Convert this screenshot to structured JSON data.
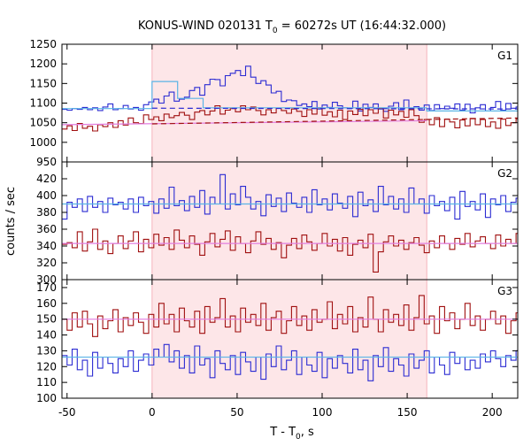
{
  "title": {
    "prefix": "KONUS-WIND 020131 T",
    "sub": "0",
    "suffix": " = 60272s UT (16:44:32.000)"
  },
  "xlabel": {
    "main": "T - T",
    "sub": "0",
    "suffix": ", s"
  },
  "ylabel": "counts / sec",
  "colors": {
    "blue": "#2b2bd2",
    "red": "#a01010",
    "cyan": "#5ab4e6",
    "pink": "#e27ee0",
    "shade": "#fde6e8",
    "shade_edge": "#f4a3ad"
  },
  "chart_data": [
    {
      "type": "line",
      "panel": "G1",
      "xlim": [
        -53,
        215
      ],
      "ylim": [
        950,
        1250
      ],
      "yticks": [
        950,
        1000,
        1050,
        1100,
        1150,
        1200,
        1250
      ],
      "xticks": [
        -50,
        0,
        50,
        100,
        150,
        200
      ],
      "shaded_interval": [
        0,
        161.5
      ],
      "series": [
        {
          "color": "blue",
          "step": true,
          "x0": -53,
          "dx": 3,
          "values": [
            1084,
            1082,
            1086,
            1084,
            1089,
            1083,
            1088,
            1081,
            1090,
            1098,
            1083,
            1086,
            1094,
            1085,
            1089,
            1082,
            1096,
            1103,
            1110,
            1100,
            1118,
            1128,
            1105,
            1110,
            1115,
            1132,
            1140,
            1120,
            1147,
            1161,
            1160,
            1144,
            1170,
            1176,
            1183,
            1170,
            1194,
            1166,
            1150,
            1157,
            1146,
            1126,
            1130,
            1104,
            1108,
            1106,
            1094,
            1098,
            1091,
            1104,
            1085,
            1095,
            1089,
            1102,
            1093,
            1088,
            1087,
            1105,
            1080,
            1097,
            1089,
            1098,
            1085,
            1079,
            1092,
            1101,
            1083,
            1108,
            1086,
            1091,
            1082,
            1095,
            1081,
            1096,
            1086,
            1092,
            1087,
            1098,
            1082,
            1097,
            1075,
            1088,
            1096,
            1080,
            1089,
            1104,
            1082,
            1099,
            1087,
            1090
          ]
        },
        {
          "color": "red",
          "step": true,
          "x0": -53,
          "dx": 3,
          "values": [
            1034,
            1042,
            1030,
            1048,
            1036,
            1041,
            1029,
            1045,
            1040,
            1050,
            1038,
            1055,
            1044,
            1062,
            1050,
            1048,
            1070,
            1058,
            1065,
            1055,
            1072,
            1063,
            1068,
            1076,
            1069,
            1058,
            1077,
            1081,
            1070,
            1080,
            1093,
            1072,
            1082,
            1086,
            1078,
            1093,
            1083,
            1090,
            1081,
            1070,
            1083,
            1075,
            1087,
            1081,
            1074,
            1085,
            1079,
            1066,
            1083,
            1072,
            1088,
            1069,
            1078,
            1065,
            1082,
            1058,
            1080,
            1071,
            1084,
            1068,
            1083,
            1074,
            1087,
            1062,
            1082,
            1070,
            1079,
            1064,
            1083,
            1068,
            1051,
            1058,
            1045,
            1063,
            1040,
            1059,
            1052,
            1037,
            1057,
            1042,
            1061,
            1045,
            1058,
            1040,
            1052,
            1036,
            1059,
            1043,
            1050,
            1060
          ]
        },
        {
          "color": "cyan",
          "step": true,
          "x0": -53,
          "dx": 6.5,
          "x_edges": [
            -53,
            0,
            0,
            15,
            15,
            30,
            30,
            161.5,
            161.5,
            215
          ],
          "edges_values": [
            1086,
            1086,
            1155,
            1155,
            1112,
            1088,
            1080,
            1080
          ]
        },
        {
          "color": "pink",
          "dashed": false,
          "x": [
            -53,
            161.5
          ],
          "y": [
            1045,
            1055
          ]
        },
        {
          "color": "red",
          "dashed": true,
          "x": [
            0,
            215
          ],
          "y": [
            1047,
            1062
          ]
        },
        {
          "color": "blue",
          "dashed": true,
          "x": [
            0,
            215
          ],
          "y": [
            1087,
            1085
          ]
        }
      ],
      "label": "G1"
    },
    {
      "type": "line",
      "panel": "G2",
      "xlim": [
        -53,
        215
      ],
      "ylim": [
        300,
        440
      ],
      "yticks": [
        300,
        320,
        340,
        360,
        380,
        400,
        420
      ],
      "xticks": [
        -50,
        0,
        50,
        100,
        150,
        200
      ],
      "shaded_interval": [
        0,
        161.5
      ],
      "series": [
        {
          "color": "blue",
          "step": true,
          "x0": -53,
          "dx": 3,
          "values": [
            372,
            392,
            386,
            396,
            381,
            399,
            386,
            393,
            380,
            397,
            389,
            392,
            384,
            396,
            380,
            398,
            388,
            393,
            379,
            396,
            385,
            410,
            388,
            394,
            382,
            399,
            386,
            406,
            378,
            398,
            390,
            425,
            384,
            402,
            389,
            411,
            398,
            384,
            393,
            376,
            401,
            387,
            397,
            381,
            403,
            391,
            386,
            398,
            380,
            407,
            389,
            396,
            383,
            402,
            391,
            385,
            399,
            375,
            404,
            388,
            395,
            381,
            411,
            389,
            399,
            384,
            396,
            380,
            409,
            390,
            396,
            379,
            400,
            388,
            393,
            382,
            398,
            372,
            405,
            387,
            393,
            383,
            402,
            374,
            396,
            389,
            400,
            381,
            392,
            397
          ]
        },
        {
          "color": "red",
          "step": true,
          "x0": -53,
          "dx": 3,
          "values": [
            342,
            344,
            338,
            357,
            334,
            345,
            360,
            336,
            346,
            331,
            343,
            352,
            337,
            346,
            357,
            333,
            348,
            338,
            354,
            341,
            350,
            336,
            359,
            347,
            338,
            352,
            342,
            329,
            345,
            355,
            339,
            348,
            358,
            335,
            351,
            343,
            332,
            346,
            357,
            342,
            349,
            336,
            344,
            326,
            341,
            349,
            337,
            353,
            345,
            335,
            343,
            355,
            340,
            348,
            334,
            350,
            329,
            342,
            347,
            338,
            354,
            309,
            333,
            345,
            352,
            340,
            347,
            336,
            344,
            350,
            341,
            332,
            346,
            338,
            352,
            343,
            336,
            349,
            342,
            355,
            339,
            346,
            351,
            343,
            337,
            353,
            340,
            348,
            343,
            355
          ]
        },
        {
          "color": "cyan",
          "x": [
            -53,
            215
          ],
          "y": [
            390,
            390
          ]
        },
        {
          "color": "pink",
          "x": [
            -53,
            215
          ],
          "y": [
            343,
            343
          ]
        }
      ],
      "label": "G2"
    },
    {
      "type": "line",
      "panel": "G3",
      "xlim": [
        -53,
        215
      ],
      "ylim": [
        100,
        175
      ],
      "yticks": [
        100,
        110,
        120,
        130,
        140,
        150,
        160,
        170
      ],
      "xticks": [
        -50,
        0,
        50,
        100,
        150,
        200
      ],
      "shaded_interval": [
        0,
        161.5
      ],
      "series": [
        {
          "color": "red",
          "step": true,
          "x0": -53,
          "dx": 3,
          "values": [
            150,
            143,
            154,
            145,
            155,
            147,
            139,
            152,
            144,
            149,
            156,
            142,
            151,
            146,
            154,
            148,
            141,
            153,
            145,
            160,
            147,
            153,
            142,
            157,
            149,
            145,
            155,
            141,
            158,
            148,
            151,
            163,
            145,
            152,
            142,
            157,
            148,
            153,
            146,
            160,
            143,
            151,
            155,
            141,
            149,
            158,
            146,
            152,
            143,
            156,
            148,
            150,
            161,
            144,
            153,
            147,
            158,
            142,
            151,
            145,
            164,
            150,
            142,
            156,
            148,
            153,
            146,
            159,
            143,
            151,
            165,
            147,
            152,
            141,
            158,
            149,
            154,
            144,
            150,
            160,
            146,
            152,
            143,
            150,
            155,
            147,
            152,
            141,
            149,
            154
          ]
        },
        {
          "color": "blue",
          "step": true,
          "x0": -53,
          "dx": 3,
          "values": [
            127,
            121,
            131,
            118,
            124,
            114,
            129,
            119,
            126,
            122,
            116,
            125,
            120,
            130,
            117,
            124,
            128,
            121,
            131,
            126,
            134,
            123,
            130,
            119,
            127,
            116,
            133,
            121,
            125,
            113,
            130,
            122,
            118,
            127,
            115,
            129,
            123,
            117,
            126,
            112,
            128,
            120,
            133,
            118,
            124,
            130,
            115,
            126,
            121,
            117,
            129,
            113,
            125,
            119,
            127,
            122,
            116,
            131,
            118,
            124,
            111,
            127,
            120,
            132,
            117,
            125,
            121,
            114,
            128,
            119,
            124,
            130,
            116,
            126,
            121,
            115,
            129,
            122,
            126,
            118,
            124,
            119,
            128,
            123,
            130,
            125,
            120,
            127,
            124,
            130
          ]
        },
        {
          "color": "pink",
          "x": [
            -53,
            215
          ],
          "y": [
            150,
            150
          ]
        },
        {
          "color": "cyan",
          "x": [
            -53,
            215
          ],
          "y": [
            126,
            126
          ]
        }
      ],
      "label": "G3"
    }
  ],
  "xtick_labels": [
    "-50",
    "0",
    "50",
    "100",
    "150",
    "200"
  ]
}
